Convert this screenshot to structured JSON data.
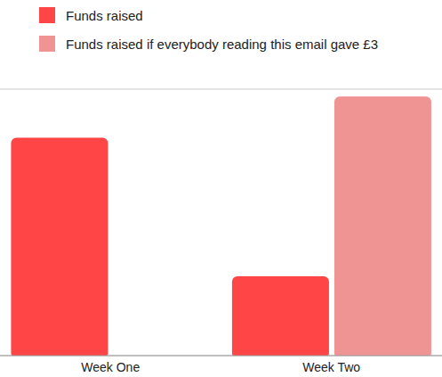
{
  "chart_data": {
    "type": "bar",
    "categories": [
      "Week One",
      "Week Two"
    ],
    "series": [
      {
        "name": "Funds raised",
        "color": "#ff4545",
        "values": [
          3.27,
          1.19
        ]
      },
      {
        "name": "Funds raised if everybody reading this email gave £3",
        "color": "#f09393",
        "values": [
          null,
          3.89
        ]
      }
    ],
    "ylim": [
      0,
      4
    ],
    "yticks": [
      0,
      1,
      2,
      3,
      4
    ],
    "grid": true,
    "legend": "top-left",
    "tick_labels": "x"
  }
}
